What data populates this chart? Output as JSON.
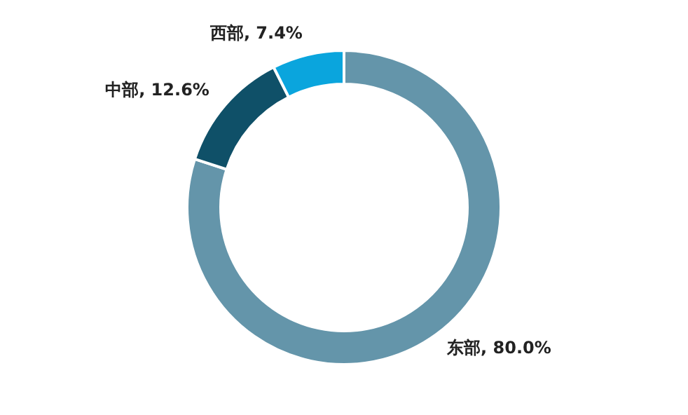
{
  "chart_data": {
    "type": "donut",
    "categories": [
      "东部",
      "中部",
      "西部"
    ],
    "values": [
      80.0,
      12.6,
      7.4
    ],
    "colors": [
      "#6495aa",
      "#0f5068",
      "#0aa5dd"
    ],
    "value_labels": [
      "80.0%",
      "12.6%",
      "7.4%"
    ]
  }
}
